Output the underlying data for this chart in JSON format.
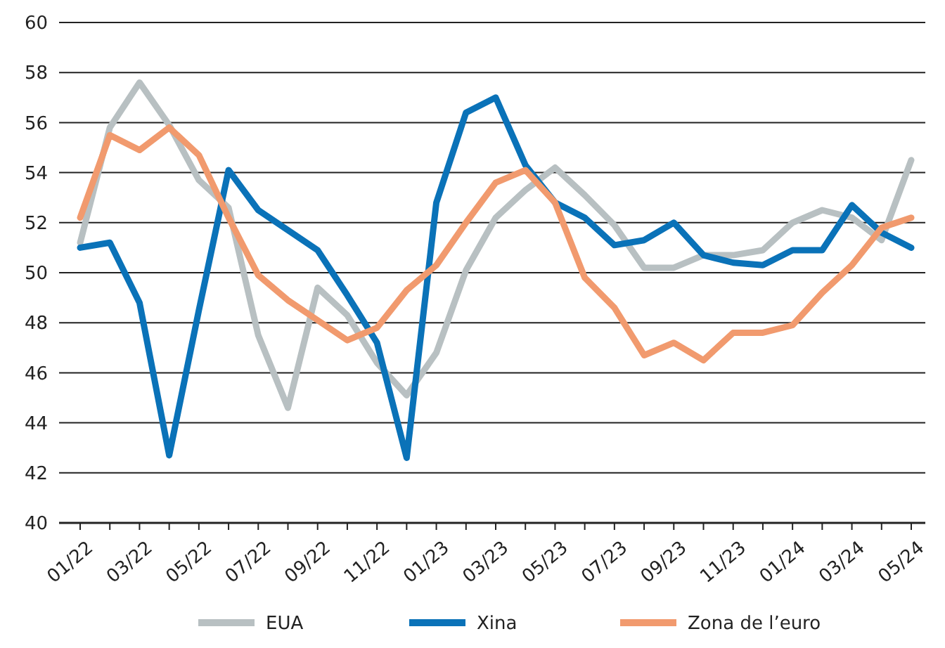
{
  "chart_data": {
    "type": "line",
    "categories": [
      "01/22",
      null,
      "03/22",
      null,
      "05/22",
      null,
      "07/22",
      null,
      "09/22",
      null,
      "11/22",
      null,
      "01/23",
      null,
      "03/23",
      null,
      "05/23",
      null,
      "07/23",
      null,
      "09/23",
      null,
      "11/23",
      null,
      "01/24",
      null,
      "03/24",
      null,
      "05/24"
    ],
    "series": [
      {
        "name": "EUA",
        "color": "#b8c0c2",
        "values": [
          51.2,
          55.8,
          57.6,
          55.9,
          53.7,
          52.6,
          47.5,
          44.6,
          49.4,
          48.3,
          46.4,
          45.1,
          46.8,
          50.1,
          52.2,
          53.3,
          54.2,
          53.1,
          51.9,
          50.2,
          50.2,
          50.7,
          50.7,
          50.9,
          52.0,
          52.5,
          52.2,
          51.3,
          54.5
        ]
      },
      {
        "name": "Xina",
        "color": "#0a72b8",
        "values": [
          51.0,
          51.2,
          48.8,
          42.7,
          48.5,
          54.1,
          52.5,
          51.7,
          50.9,
          49.1,
          47.2,
          42.6,
          52.8,
          56.4,
          57.0,
          54.3,
          52.8,
          52.2,
          51.1,
          51.3,
          52.0,
          50.7,
          50.4,
          50.3,
          50.9,
          50.9,
          52.7,
          51.6,
          51.0
        ]
      },
      {
        "name": "Zona de l’euro",
        "color": "#f19a6e",
        "values": [
          52.2,
          55.5,
          54.9,
          55.8,
          54.7,
          52.2,
          49.9,
          48.9,
          48.1,
          47.3,
          47.8,
          49.3,
          50.3,
          52.0,
          53.6,
          54.1,
          52.8,
          49.8,
          48.6,
          46.7,
          47.2,
          46.5,
          47.6,
          47.6,
          47.9,
          49.2,
          50.3,
          51.8,
          52.2
        ]
      }
    ],
    "ylim": [
      40,
      60
    ],
    "yticks": [
      40,
      42,
      44,
      46,
      48,
      50,
      52,
      54,
      56,
      58,
      60
    ],
    "grid": "y",
    "legend": "bottom",
    "line_style": "solid",
    "marker": "none"
  }
}
